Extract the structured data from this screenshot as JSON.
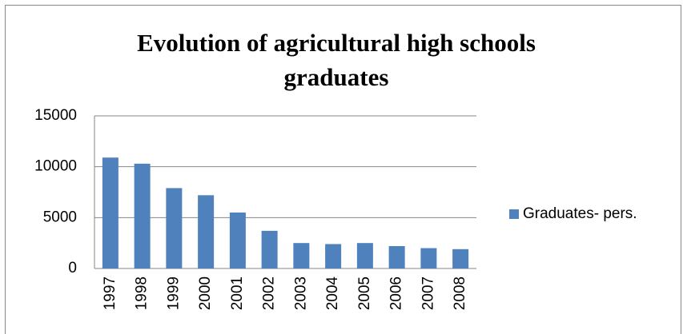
{
  "chart_data": {
    "type": "bar",
    "title": "Evolution of agricultural high schools graduates",
    "categories": [
      "1997",
      "1998",
      "1999",
      "2000",
      "2001",
      "2002",
      "2003",
      "2004",
      "2005",
      "2006",
      "2007",
      "2008"
    ],
    "series": [
      {
        "name": "Graduates- pers.",
        "color": "#4f81bd",
        "values": [
          10900,
          10300,
          7900,
          7200,
          5500,
          3700,
          2500,
          2400,
          2500,
          2200,
          2000,
          1900
        ]
      }
    ],
    "ylim": [
      0,
      15000
    ],
    "yticks": [
      0,
      5000,
      10000,
      15000
    ],
    "grid": true,
    "legend": "right"
  }
}
